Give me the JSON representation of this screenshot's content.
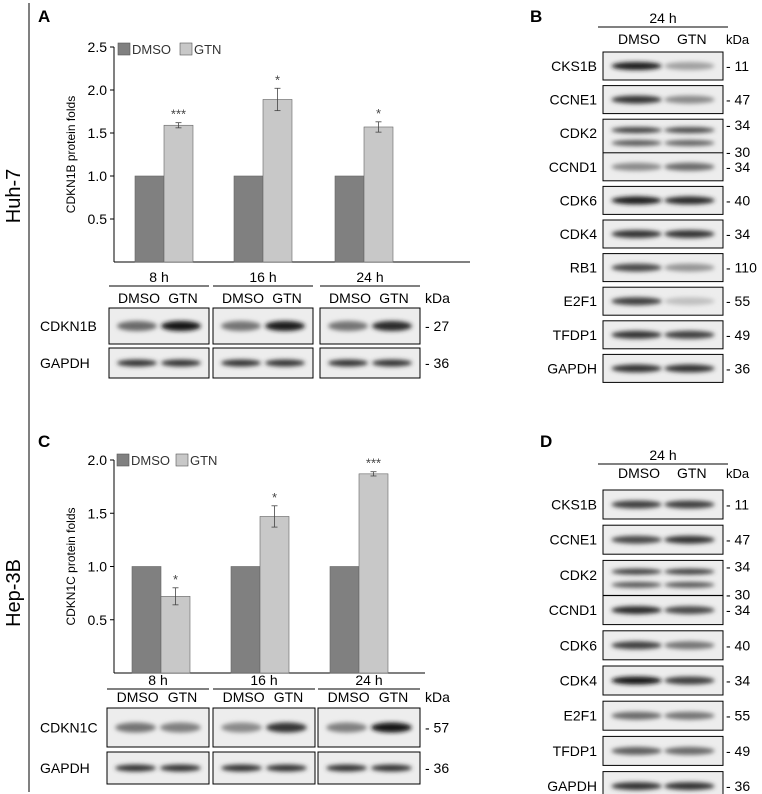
{
  "side_labels": {
    "top": "Huh-7",
    "bottom": "Hep-3B"
  },
  "kda_label": "kDa",
  "band_colors": {
    "dark": "#1a1a1a",
    "light": "#8a8a8a"
  },
  "chart_data": [
    {
      "panel": "A",
      "type": "bar",
      "ylabel": "CDKN1B  protein folds",
      "ylim": [
        0,
        2.5
      ],
      "yticks": [
        0.5,
        1.0,
        1.5,
        2.0,
        2.5
      ],
      "categories": [
        "8 h",
        "16 h",
        "24 h"
      ],
      "legend_position": "top-left",
      "series": [
        {
          "name": "DMSO",
          "color": "#808080",
          "values": [
            1.0,
            1.0,
            1.0
          ],
          "errors": [
            0,
            0,
            0
          ]
        },
        {
          "name": "GTN",
          "color": "#c8c8c8",
          "values": [
            1.59,
            1.89,
            1.57
          ],
          "errors": [
            0.03,
            0.13,
            0.06
          ]
        }
      ],
      "significance": [
        "***",
        "*",
        "*"
      ],
      "lane_labels": [
        "DMSO",
        "GTN"
      ],
      "blots": [
        {
          "name": "CDKN1B",
          "kda": "- 27",
          "intensity": [
            [
              0.6,
              1.0
            ],
            [
              0.55,
              0.95
            ],
            [
              0.55,
              0.9
            ]
          ]
        },
        {
          "name": "GAPDH",
          "kda": "- 36",
          "intensity": [
            [
              0.85,
              0.85
            ],
            [
              0.85,
              0.85
            ],
            [
              0.85,
              0.85
            ]
          ]
        }
      ]
    },
    {
      "panel": "C",
      "type": "bar",
      "ylabel": "CDKN1C  protein folds",
      "ylim": [
        0,
        2.0
      ],
      "yticks": [
        0.5,
        1.0,
        1.5,
        2.0
      ],
      "categories": [
        "8 h",
        "16 h",
        "24 h"
      ],
      "legend_position": "top-left",
      "series": [
        {
          "name": "DMSO",
          "color": "#808080",
          "values": [
            1.0,
            1.0,
            1.0
          ],
          "errors": [
            0,
            0,
            0
          ]
        },
        {
          "name": "GTN",
          "color": "#c8c8c8",
          "values": [
            0.72,
            1.47,
            1.87
          ],
          "errors": [
            0.08,
            0.1,
            0.02
          ]
        }
      ],
      "significance": [
        "*",
        "*",
        "***"
      ],
      "lane_labels": [
        "DMSO",
        "GTN"
      ],
      "blots": [
        {
          "name": "CDKN1C",
          "kda": "- 57",
          "intensity": [
            [
              0.55,
              0.5
            ],
            [
              0.45,
              0.85
            ],
            [
              0.5,
              1.0
            ]
          ]
        },
        {
          "name": "GAPDH",
          "kda": "- 36",
          "intensity": [
            [
              0.85,
              0.85
            ],
            [
              0.85,
              0.85
            ],
            [
              0.85,
              0.85
            ]
          ]
        }
      ]
    }
  ],
  "blot_panels": [
    {
      "panel": "B",
      "time": "24 h",
      "lane_labels": [
        "DMSO",
        "GTN"
      ],
      "rows": [
        {
          "name": "CKS1B",
          "kda": [
            "- 11"
          ],
          "intensity": [
            0.95,
            0.35
          ]
        },
        {
          "name": "CCNE1",
          "kda": [
            "- 47"
          ],
          "intensity": [
            0.85,
            0.45
          ]
        },
        {
          "name": "CDK2",
          "kda": [
            "- 34",
            "- 30"
          ],
          "intensity": [
            0.8,
            0.75
          ],
          "double": true
        },
        {
          "name": "CCND1",
          "kda": [
            "- 34"
          ],
          "intensity": [
            0.45,
            0.6
          ]
        },
        {
          "name": "CDK6",
          "kda": [
            "- 40"
          ],
          "intensity": [
            0.95,
            0.9
          ]
        },
        {
          "name": "CDK4",
          "kda": [
            "- 34"
          ],
          "intensity": [
            0.85,
            0.85
          ]
        },
        {
          "name": "RB1",
          "kda": [
            "- 110"
          ],
          "intensity": [
            0.75,
            0.4
          ]
        },
        {
          "name": "E2F1",
          "kda": [
            "- 55"
          ],
          "intensity": [
            0.8,
            0.2
          ]
        },
        {
          "name": "TFDP1",
          "kda": [
            "- 49"
          ],
          "intensity": [
            0.85,
            0.8
          ]
        },
        {
          "name": "GAPDH",
          "kda": [
            "- 36"
          ],
          "intensity": [
            0.85,
            0.85
          ]
        }
      ]
    },
    {
      "panel": "D",
      "time": "24 h",
      "lane_labels": [
        "DMSO",
        "GTN"
      ],
      "rows": [
        {
          "name": "CKS1B",
          "kda": [
            "- 11"
          ],
          "intensity": [
            0.8,
            0.8
          ]
        },
        {
          "name": "CCNE1",
          "kda": [
            "- 47"
          ],
          "intensity": [
            0.75,
            0.85
          ]
        },
        {
          "name": "CDK2",
          "kda": [
            "- 34",
            "- 30"
          ],
          "intensity": [
            0.8,
            0.8
          ],
          "double": true
        },
        {
          "name": "CCND1",
          "kda": [
            "- 34"
          ],
          "intensity": [
            0.9,
            0.75
          ]
        },
        {
          "name": "CDK6",
          "kda": [
            "- 40"
          ],
          "intensity": [
            0.8,
            0.55
          ]
        },
        {
          "name": "CDK4",
          "kda": [
            "- 34"
          ],
          "intensity": [
            1.0,
            0.8
          ]
        },
        {
          "name": "E2F1",
          "kda": [
            "- 55"
          ],
          "intensity": [
            0.6,
            0.55
          ]
        },
        {
          "name": "TFDP1",
          "kda": [
            "- 49"
          ],
          "intensity": [
            0.65,
            0.6
          ]
        },
        {
          "name": "GAPDH",
          "kda": [
            "- 36"
          ],
          "intensity": [
            0.85,
            0.85
          ]
        }
      ]
    }
  ]
}
